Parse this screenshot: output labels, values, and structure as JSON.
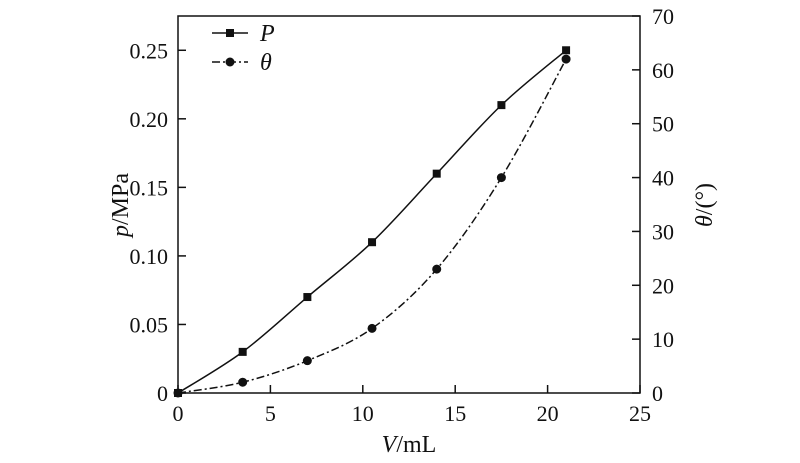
{
  "chart_data": {
    "type": "line",
    "x": [
      0,
      3.5,
      7,
      10.5,
      14,
      17.5,
      21
    ],
    "xlabel_var": "V",
    "xlabel_unit": "/mL",
    "ylabel_var": "p",
    "ylabel_unit": "/MPa",
    "y2label_var": "θ",
    "y2label_unit": "/(°)",
    "xlim": [
      0,
      25
    ],
    "ylim": [
      0,
      0.275
    ],
    "y2lim": [
      0,
      70
    ],
    "xticks": [
      "0",
      "5",
      "10",
      "15",
      "20",
      "25"
    ],
    "yticks": [
      "0",
      "0.05",
      "0.10",
      "0.15",
      "0.20",
      "0.25"
    ],
    "y2ticks": [
      "0",
      "10",
      "20",
      "30",
      "40",
      "50",
      "60",
      "70"
    ],
    "legend_position": "top-left",
    "grid": false,
    "series": [
      {
        "name": "P",
        "axis": "left",
        "marker": "square",
        "line_style": "solid",
        "values": [
          0,
          0.03,
          0.07,
          0.11,
          0.16,
          0.21,
          0.25
        ]
      },
      {
        "name": "θ",
        "axis": "right",
        "marker": "circle",
        "line_style": "dash-dot",
        "values": [
          0,
          2,
          6,
          12,
          23,
          40,
          62
        ]
      }
    ]
  }
}
